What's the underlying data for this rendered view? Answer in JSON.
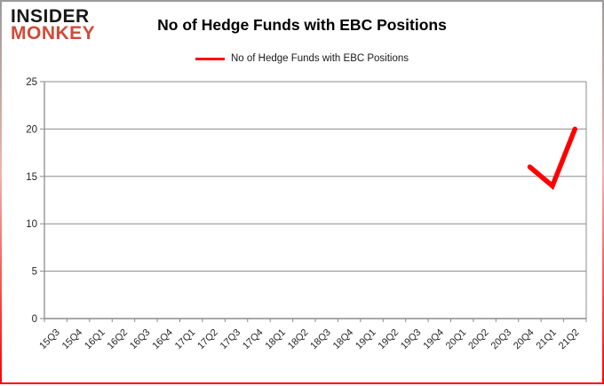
{
  "logo": {
    "line1": "INSIDER",
    "line2": "MONKEY",
    "line1_color": "#191919",
    "line2_color": "#d04a38"
  },
  "header": {
    "title": "No of Hedge Funds with EBC Positions"
  },
  "legend": {
    "label": "No of Hedge Funds with EBC Positions",
    "swatch_color": "#fe0000"
  },
  "chart_data": {
    "type": "line",
    "title": "No of Hedge Funds with EBC Positions",
    "categories": [
      "15Q3",
      "15Q4",
      "16Q1",
      "16Q2",
      "16Q3",
      "16Q4",
      "17Q1",
      "17Q2",
      "17Q3",
      "17Q4",
      "18Q1",
      "18Q2",
      "18Q3",
      "18Q4",
      "19Q1",
      "19Q2",
      "19Q3",
      "19Q4",
      "20Q1",
      "20Q2",
      "20Q3",
      "20Q4",
      "21Q1",
      "21Q2"
    ],
    "series": [
      {
        "name": "No of Hedge Funds with EBC Positions",
        "color": "#fe0000",
        "values": [
          null,
          null,
          null,
          null,
          null,
          null,
          null,
          null,
          null,
          null,
          null,
          null,
          null,
          null,
          null,
          null,
          null,
          null,
          null,
          null,
          null,
          16,
          14,
          20
        ]
      }
    ],
    "xlabel": "",
    "ylabel": "",
    "ylim": [
      0,
      25
    ],
    "yticks": [
      0,
      5,
      10,
      15,
      20,
      25
    ],
    "grid": true,
    "legend_position": "top-center",
    "gridline_color": "#8c8c8c",
    "axis_color": "#8c8c8c",
    "tick_label_color": "#262626"
  }
}
